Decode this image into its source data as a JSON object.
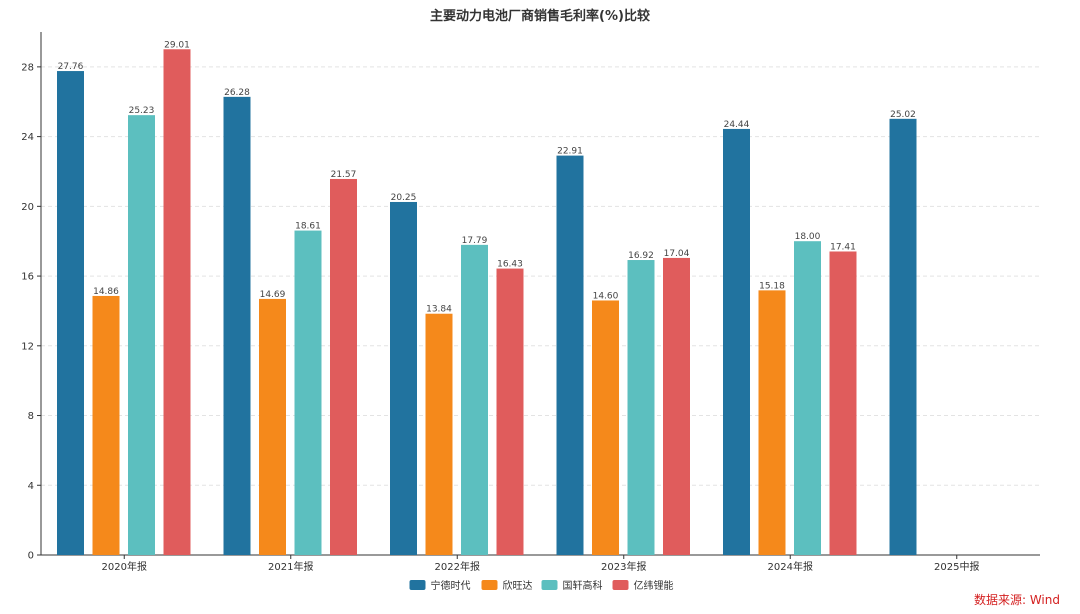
{
  "chart_data": {
    "type": "bar",
    "title": "主要动力电池厂商销售毛利率(%)比较",
    "xlabel": "",
    "ylabel": "",
    "categories": [
      "2020年报",
      "2021年报",
      "2022年报",
      "2023年报",
      "2024年报",
      "2025中报"
    ],
    "ylim": [
      0,
      28
    ],
    "y_ticks": [
      0,
      4,
      8,
      12,
      16,
      20,
      24,
      28
    ],
    "grid": "horizontal dashed",
    "legend_position": "bottom",
    "data_labels": true,
    "series": [
      {
        "name": "宁德时代",
        "color": "#21739f",
        "values": [
          27.76,
          26.28,
          20.25,
          22.91,
          24.44,
          25.02
        ],
        "labels": [
          "27.76",
          "26.28",
          "20.25",
          "22.91",
          "24.44",
          "25.02"
        ]
      },
      {
        "name": "欣旺达",
        "color": "#f5891b",
        "values": [
          14.86,
          14.69,
          13.84,
          14.6,
          15.18,
          null
        ],
        "labels": [
          "14.86",
          "14.69",
          "13.84",
          "14.60",
          "15.18",
          ""
        ]
      },
      {
        "name": "国轩高科",
        "color": "#5cbfbf",
        "values": [
          25.23,
          18.61,
          17.79,
          16.92,
          18.0,
          null
        ],
        "labels": [
          "25.23",
          "18.61",
          "17.79",
          "16.92",
          "18.00",
          ""
        ]
      },
      {
        "name": "亿纬锂能",
        "color": "#e05c5c",
        "values": [
          29.01,
          21.57,
          16.43,
          17.04,
          17.41,
          null
        ],
        "labels": [
          "29.01",
          "21.57",
          "16.43",
          "17.04",
          "17.41",
          ""
        ]
      }
    ]
  },
  "footer": {
    "source": "数据来源: Wind"
  }
}
